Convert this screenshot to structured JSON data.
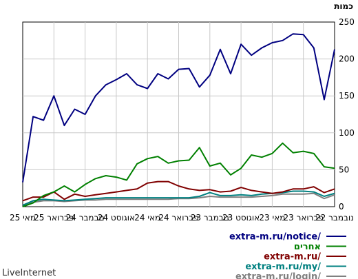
{
  "chart_data": {
    "type": "line",
    "ylabel": "כמות",
    "ylim": [
      0,
      250
    ],
    "yticks": [
      0,
      50,
      100,
      150,
      200,
      250
    ],
    "grid": true,
    "x_direction": "right-to-left",
    "x_ticks": [
      "נובמבר 22",
      "פברואר 23",
      "מאי 23",
      "אוגוסט 23",
      "נובמבר 23",
      "פברואר 24",
      "מאי 24",
      "אוגוסט 24",
      "נובמבר 24",
      "פברואר 25",
      "מאי 25"
    ],
    "series": [
      {
        "name": "extra-m.ru/notice/",
        "color": "#000080",
        "values": [
          213,
          145,
          215,
          233,
          234,
          225,
          222,
          215,
          205,
          220,
          180,
          213,
          178,
          162,
          187,
          186,
          173,
          180,
          160,
          165,
          180,
          172,
          165,
          150,
          125,
          132,
          110,
          150,
          117,
          122,
          33
        ]
      },
      {
        "name": "אחרים",
        "color": "#008000",
        "values": [
          52,
          54,
          72,
          75,
          73,
          86,
          72,
          67,
          70,
          52,
          43,
          59,
          55,
          80,
          63,
          62,
          59,
          68,
          65,
          58,
          36,
          40,
          42,
          38,
          30,
          20,
          28,
          20,
          15,
          5,
          0
        ]
      },
      {
        "name": "extra-m.ru/",
        "color": "#800000",
        "values": [
          24,
          19,
          27,
          24,
          24,
          20,
          18,
          20,
          22,
          26,
          21,
          20,
          23,
          22,
          24,
          28,
          34,
          34,
          32,
          24,
          22,
          20,
          18,
          16,
          14,
          17,
          10,
          20,
          13,
          13,
          8
        ]
      },
      {
        "name": "extra-m.ru/my/",
        "color": "#008080",
        "values": [
          18,
          14,
          20,
          21,
          21,
          19,
          18,
          17,
          15,
          16,
          15,
          15,
          19,
          14,
          12,
          12,
          12,
          12,
          12,
          12,
          12,
          12,
          12,
          11,
          10,
          9,
          8,
          9,
          10,
          8,
          2
        ]
      },
      {
        "name": "extra-m.ru/login/",
        "color": "#808080",
        "values": [
          16,
          11,
          18,
          17,
          17,
          17,
          15,
          14,
          13,
          13,
          13,
          13,
          14,
          12,
          11,
          11,
          10,
          10,
          10,
          10,
          10,
          10,
          10,
          9,
          9,
          8,
          7,
          8,
          8,
          6,
          2
        ]
      }
    ],
    "footer": "LiveInternet"
  }
}
